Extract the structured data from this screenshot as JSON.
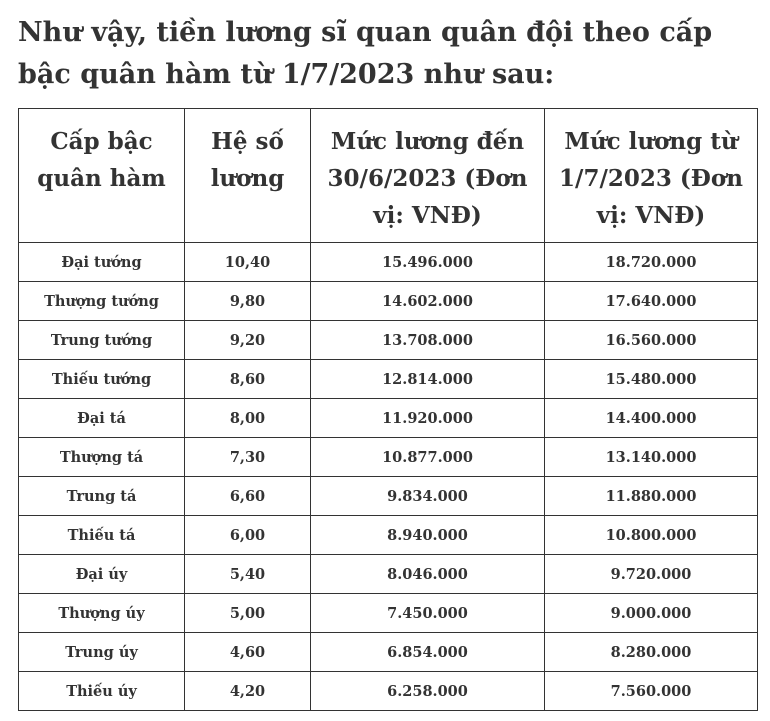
{
  "title": "Như vậy, tiền lương sĩ quan quân đội theo cấp bậc quân hàm từ 1/7/2023 như sau:",
  "table": {
    "headers": [
      "Cấp bậc quân hàm",
      "Hệ số lương",
      "Mức lương đến 30/6/2023 (Đơn vị: VNĐ)",
      "Mức lương từ 1/7/2023 (Đơn vị: VNĐ)"
    ],
    "rows": [
      [
        "Đại tướng",
        "10,40",
        "15.496.000",
        "18.720.000"
      ],
      [
        "Thượng tướng",
        "9,80",
        "14.602.000",
        "17.640.000"
      ],
      [
        "Trung tướng",
        "9,20",
        "13.708.000",
        "16.560.000"
      ],
      [
        "Thiếu tướng",
        "8,60",
        "12.814.000",
        "15.480.000"
      ],
      [
        "Đại tá",
        "8,00",
        "11.920.000",
        "14.400.000"
      ],
      [
        "Thượng tá",
        "7,30",
        "10.877.000",
        "13.140.000"
      ],
      [
        "Trung tá",
        "6,60",
        "9.834.000",
        "11.880.000"
      ],
      [
        "Thiếu tá",
        "6,00",
        "8.940.000",
        "10.800.000"
      ],
      [
        "Đại úy",
        "5,40",
        "8.046.000",
        "9.720.000"
      ],
      [
        "Thượng úy",
        "5,00",
        "7.450.000",
        "9.000.000"
      ],
      [
        "Trung úy",
        "4,60",
        "6.854.000",
        "8.280.000"
      ],
      [
        "Thiếu úy",
        "4,20",
        "6.258.000",
        "7.560.000"
      ]
    ]
  }
}
